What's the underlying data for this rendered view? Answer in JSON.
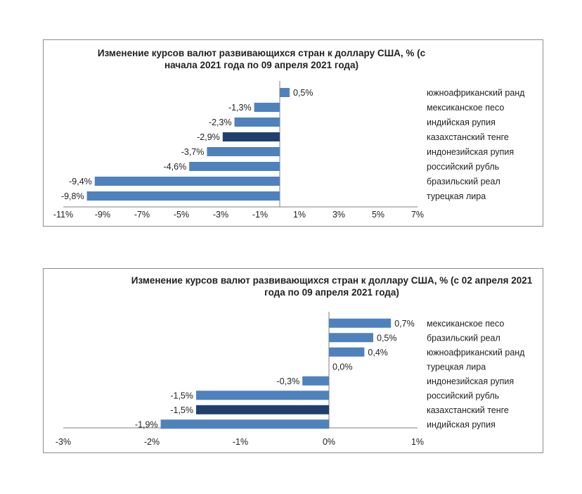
{
  "chart_data": [
    {
      "type": "bar",
      "orientation": "horizontal",
      "title": "Изменение курсов валют развивающихся стран к доллару США, % (с начала 2021 года по 09 апреля 2021 года)",
      "categories": [
        "южноафриканский ранд",
        "мексиканское песо",
        "индийская рупия",
        "казахстанский тенге",
        "индонезийская рупия",
        "российский рубль",
        "бразильский реал",
        "турецкая лира"
      ],
      "values": [
        0.5,
        -1.3,
        -2.3,
        -2.9,
        -3.7,
        -4.6,
        -9.4,
        -9.8
      ],
      "value_labels": [
        "0,5%",
        "-1,3%",
        "-2,3%",
        "-2,9%",
        "-3,7%",
        "-4,6%",
        "-9,4%",
        "-9,8%"
      ],
      "highlight_index": 3,
      "xlim": [
        -11,
        7
      ],
      "xticks": [
        -11,
        -9,
        -7,
        -5,
        -3,
        -1,
        1,
        3,
        5,
        7
      ],
      "xtick_labels": [
        "-11%",
        "-9%",
        "-7%",
        "-5%",
        "-3%",
        "-1%",
        "1%",
        "3%",
        "5%",
        "7%"
      ],
      "xlabel": "",
      "ylabel": ""
    },
    {
      "type": "bar",
      "orientation": "horizontal",
      "title": "Изменение курсов валют развивающихся стран к доллару США, % (с 02 апреля 2021 года по 09 апреля 2021 года)",
      "categories": [
        "мексиканское песо",
        "бразильский реал",
        "южноафриканский ранд",
        "турецкая лира",
        "индонезийская рупия",
        "российский рубль",
        "казахстанский тенге",
        "индийская рупия"
      ],
      "values": [
        0.7,
        0.5,
        0.4,
        0.0,
        -0.3,
        -1.5,
        -1.5,
        -1.9
      ],
      "value_labels": [
        "0,7%",
        "0,5%",
        "0,4%",
        "0,0%",
        "-0,3%",
        "-1,5%",
        "-1,5%",
        "-1,9%"
      ],
      "highlight_index": 6,
      "xlim": [
        -3,
        1
      ],
      "xticks": [
        -3,
        -2,
        -1,
        0,
        1
      ],
      "xtick_labels": [
        "-3%",
        "-2%",
        "-1%",
        "0%",
        "1%"
      ],
      "xlabel": "",
      "ylabel": ""
    }
  ],
  "colors": {
    "bar": "#4f81bd",
    "highlight": "#1f3f6e",
    "axis": "#7f7f7f"
  }
}
